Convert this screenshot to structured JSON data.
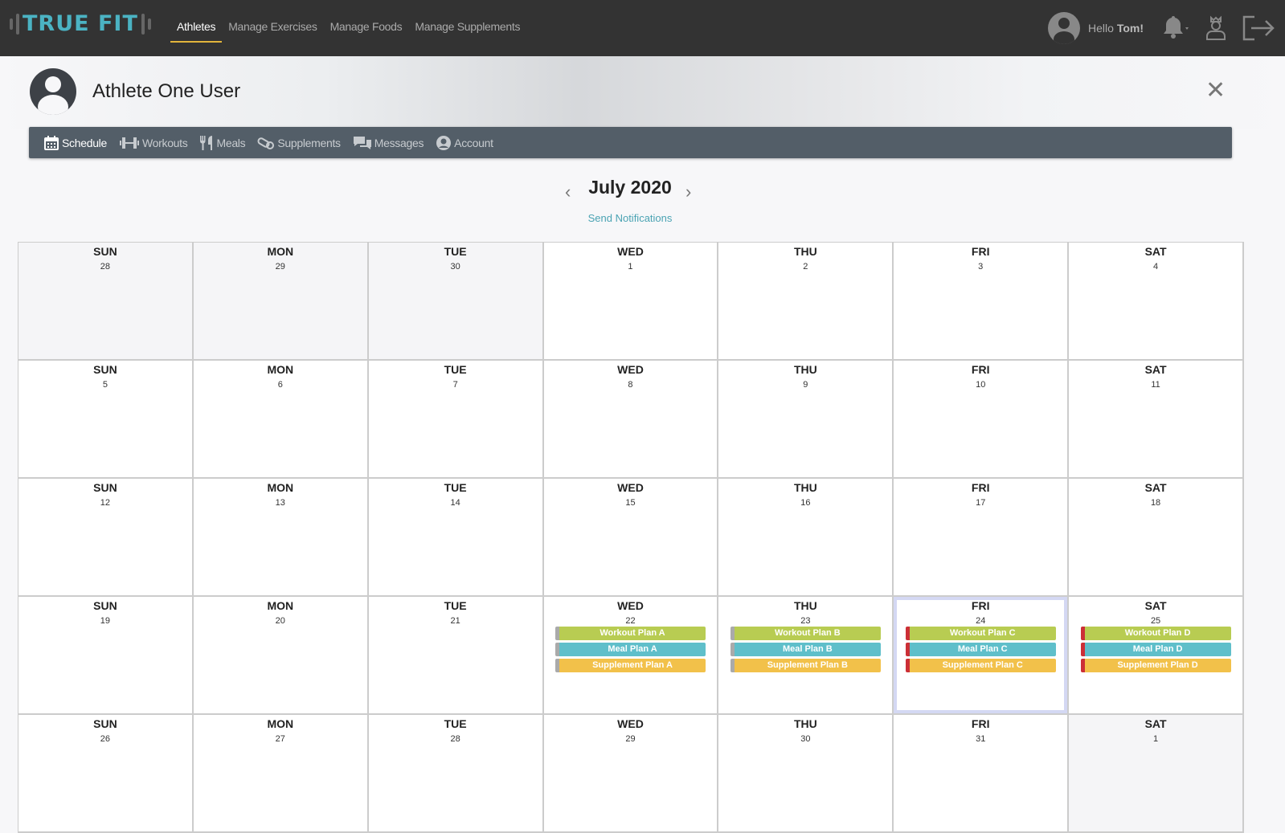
{
  "topbar": {
    "logo": "TRUE FIT",
    "nav": [
      {
        "label": "Athletes",
        "active": true
      },
      {
        "label": "Manage Exercises"
      },
      {
        "label": "Manage Foods"
      },
      {
        "label": "Manage Supplements"
      }
    ],
    "hello": "Hello ",
    "user": "Tom!",
    "icons": [
      "user-avatar-icon",
      "bell-icon",
      "coach-icon",
      "logout-icon"
    ]
  },
  "athlete": {
    "name": "Athlete One User"
  },
  "subnav": [
    {
      "label": "Schedule",
      "icon": "calendar-icon",
      "active": true
    },
    {
      "label": "Workouts",
      "icon": "dumbbell-icon"
    },
    {
      "label": "Meals",
      "icon": "utensils-icon"
    },
    {
      "label": "Supplements",
      "icon": "pills-icon"
    },
    {
      "label": "Messages",
      "icon": "messages-icon"
    },
    {
      "label": "Account",
      "icon": "user-circle-icon"
    }
  ],
  "calendar": {
    "month": "July 2020",
    "send_notifications": "Send Notifications",
    "colors": {
      "workout": "#b8cc52",
      "meal": "#5fbfca",
      "supplement": "#f2c14a",
      "flag": "#cc2f36",
      "today": "#d4d8f3"
    },
    "weekdays": [
      "SUN",
      "MON",
      "TUE",
      "WED",
      "THU",
      "FRI",
      "SAT"
    ],
    "weeks": [
      [
        {
          "n": "28",
          "muted": true
        },
        {
          "n": "29",
          "muted": true
        },
        {
          "n": "30",
          "muted": true
        },
        {
          "n": "1"
        },
        {
          "n": "2"
        },
        {
          "n": "3"
        },
        {
          "n": "4"
        }
      ],
      [
        {
          "n": "5"
        },
        {
          "n": "6"
        },
        {
          "n": "7"
        },
        {
          "n": "8"
        },
        {
          "n": "9"
        },
        {
          "n": "10"
        },
        {
          "n": "11"
        }
      ],
      [
        {
          "n": "12"
        },
        {
          "n": "13"
        },
        {
          "n": "14"
        },
        {
          "n": "15"
        },
        {
          "n": "16"
        },
        {
          "n": "17"
        },
        {
          "n": "18"
        }
      ],
      [
        {
          "n": "19"
        },
        {
          "n": "20"
        },
        {
          "n": "21"
        },
        {
          "n": "22",
          "events": [
            {
              "type": "workout",
              "label": "Workout Plan A"
            },
            {
              "type": "meal",
              "label": "Meal Plan A"
            },
            {
              "type": "supplement",
              "label": "Supplement Plan A"
            }
          ]
        },
        {
          "n": "23",
          "events": [
            {
              "type": "workout",
              "label": "Workout Plan B"
            },
            {
              "type": "meal",
              "label": "Meal Plan B"
            },
            {
              "type": "supplement",
              "label": "Supplement Plan B"
            }
          ]
        },
        {
          "n": "24",
          "today": true,
          "flag": true,
          "events": [
            {
              "type": "workout",
              "label": "Workout Plan C"
            },
            {
              "type": "meal",
              "label": "Meal Plan C"
            },
            {
              "type": "supplement",
              "label": "Supplement Plan C"
            }
          ]
        },
        {
          "n": "25",
          "flag": true,
          "events": [
            {
              "type": "workout",
              "label": "Workout Plan D"
            },
            {
              "type": "meal",
              "label": "Meal Plan D"
            },
            {
              "type": "supplement",
              "label": "Supplement Plan D"
            }
          ]
        }
      ],
      [
        {
          "n": "26"
        },
        {
          "n": "27"
        },
        {
          "n": "28"
        },
        {
          "n": "29"
        },
        {
          "n": "30"
        },
        {
          "n": "31"
        },
        {
          "n": "1",
          "muted": true
        }
      ]
    ]
  }
}
